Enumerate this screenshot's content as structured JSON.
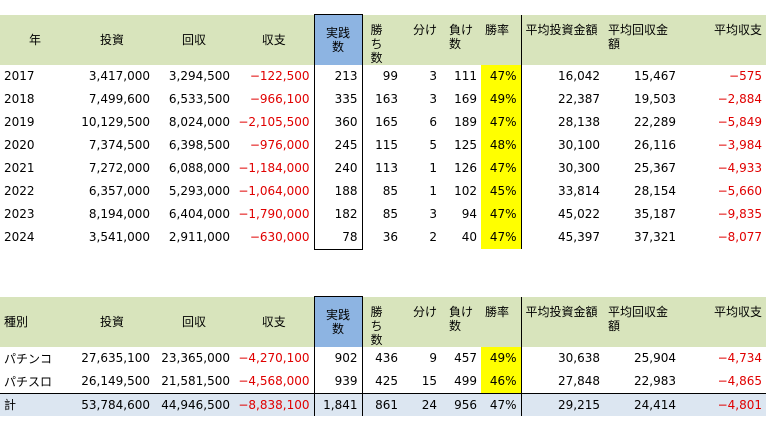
{
  "yearly": {
    "headers": {
      "year": "年",
      "invest": "投資",
      "recover": "回収",
      "balance": "収支",
      "played": "実践数",
      "wins": "勝ち数",
      "draws": "分け",
      "losses": "負け数",
      "winrate": "勝率",
      "avg_invest": "平均投資金額",
      "avg_recover": "平均回収金額",
      "avg_balance": "平均収支"
    },
    "rows": [
      {
        "label": "2017",
        "invest": "3,417,000",
        "recover": "3,294,500",
        "balance": "−122,500",
        "played": "213",
        "wins": "99",
        "draws": "3",
        "losses": "111",
        "winrate": "47%",
        "avg_invest": "16,042",
        "avg_recover": "15,467",
        "avg_balance": "−575"
      },
      {
        "label": "2018",
        "invest": "7,499,600",
        "recover": "6,533,500",
        "balance": "−966,100",
        "played": "335",
        "wins": "163",
        "draws": "3",
        "losses": "169",
        "winrate": "49%",
        "avg_invest": "22,387",
        "avg_recover": "19,503",
        "avg_balance": "−2,884"
      },
      {
        "label": "2019",
        "invest": "10,129,500",
        "recover": "8,024,000",
        "balance": "−2,105,500",
        "played": "360",
        "wins": "165",
        "draws": "6",
        "losses": "189",
        "winrate": "47%",
        "avg_invest": "28,138",
        "avg_recover": "22,289",
        "avg_balance": "−5,849"
      },
      {
        "label": "2020",
        "invest": "7,374,500",
        "recover": "6,398,500",
        "balance": "−976,000",
        "played": "245",
        "wins": "115",
        "draws": "5",
        "losses": "125",
        "winrate": "48%",
        "avg_invest": "30,100",
        "avg_recover": "26,116",
        "avg_balance": "−3,984"
      },
      {
        "label": "2021",
        "invest": "7,272,000",
        "recover": "6,088,000",
        "balance": "−1,184,000",
        "played": "240",
        "wins": "113",
        "draws": "1",
        "losses": "126",
        "winrate": "47%",
        "avg_invest": "30,300",
        "avg_recover": "25,367",
        "avg_balance": "−4,933"
      },
      {
        "label": "2022",
        "invest": "6,357,000",
        "recover": "5,293,000",
        "balance": "−1,064,000",
        "played": "188",
        "wins": "85",
        "draws": "1",
        "losses": "102",
        "winrate": "45%",
        "avg_invest": "33,814",
        "avg_recover": "28,154",
        "avg_balance": "−5,660"
      },
      {
        "label": "2023",
        "invest": "8,194,000",
        "recover": "6,404,000",
        "balance": "−1,790,000",
        "played": "182",
        "wins": "85",
        "draws": "3",
        "losses": "94",
        "winrate": "47%",
        "avg_invest": "45,022",
        "avg_recover": "35,187",
        "avg_balance": "−9,835"
      },
      {
        "label": "2024",
        "invest": "3,541,000",
        "recover": "2,911,000",
        "balance": "−630,000",
        "played": "78",
        "wins": "36",
        "draws": "2",
        "losses": "40",
        "winrate": "47%",
        "avg_invest": "45,397",
        "avg_recover": "37,321",
        "avg_balance": "−8,077"
      }
    ]
  },
  "by_type": {
    "headers": {
      "year": "種別",
      "invest": "投資",
      "recover": "回収",
      "balance": "収支",
      "played": "実践数",
      "wins": "勝ち数",
      "draws": "分け",
      "losses": "負け数",
      "winrate": "勝率",
      "avg_invest": "平均投資金額",
      "avg_recover": "平均回収金額",
      "avg_balance": "平均収支"
    },
    "rows": [
      {
        "label": "パチンコ",
        "invest": "27,635,100",
        "recover": "23,365,000",
        "balance": "−4,270,100",
        "played": "902",
        "wins": "436",
        "draws": "9",
        "losses": "457",
        "winrate": "49%",
        "avg_invest": "30,638",
        "avg_recover": "25,904",
        "avg_balance": "−4,734"
      },
      {
        "label": "パチスロ",
        "invest": "26,149,500",
        "recover": "21,581,500",
        "balance": "−4,568,000",
        "played": "939",
        "wins": "425",
        "draws": "15",
        "losses": "499",
        "winrate": "46%",
        "avg_invest": "27,848",
        "avg_recover": "22,983",
        "avg_balance": "−4,865"
      }
    ],
    "total": {
      "label": "計",
      "invest": "53,784,600",
      "recover": "44,946,500",
      "balance": "−8,838,100",
      "played": "1,841",
      "wins": "861",
      "draws": "24",
      "losses": "956",
      "winrate": "47%",
      "avg_invest": "29,215",
      "avg_recover": "24,414",
      "avg_balance": "−4,801"
    }
  },
  "colors": {
    "header_green": "#d8e4bc",
    "header_blue": "#8db4e2",
    "highlight": "#ffff00",
    "negative": "#e00000",
    "total_row": "#dce6f1"
  }
}
